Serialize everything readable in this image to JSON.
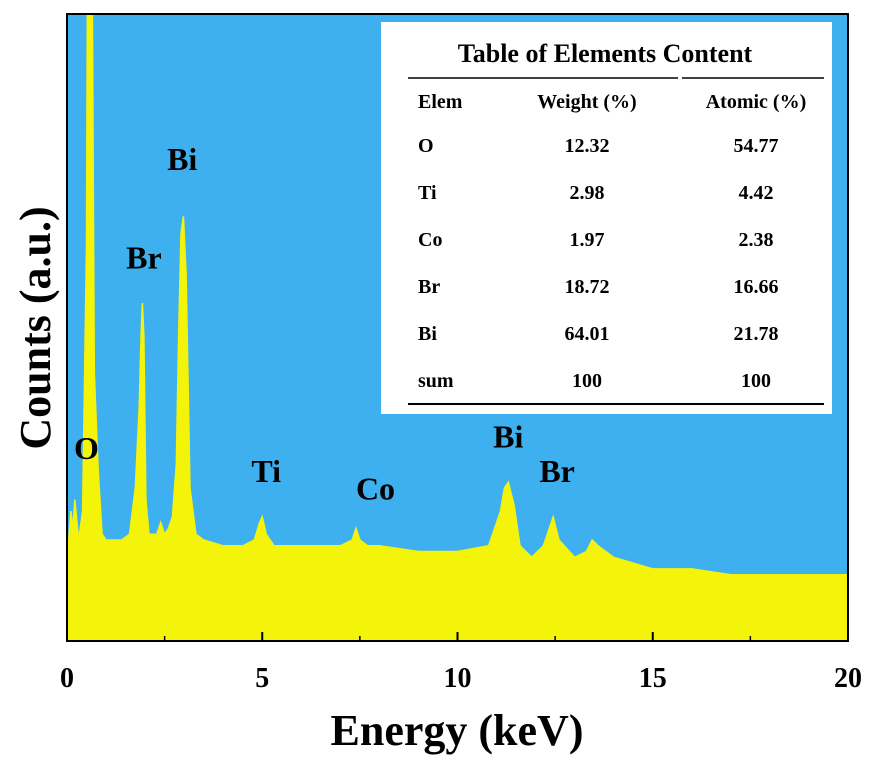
{
  "chart_data": {
    "type": "line",
    "xlabel": "Energy (keV)",
    "ylabel": "Counts (a.u.)",
    "xlim": [
      0,
      20
    ],
    "x_ticks": [
      "0",
      "5",
      "10",
      "15",
      "20"
    ],
    "y_ticks_shown": false,
    "background_color": "#3fb0ef",
    "series_color": "#f4f40a",
    "series": [
      {
        "x": [
          0.0,
          0.1,
          0.15,
          0.2,
          0.3,
          0.4,
          0.5,
          0.52,
          0.55,
          0.65,
          0.7,
          0.8,
          0.9,
          1.0,
          1.2,
          1.4,
          1.6,
          1.75,
          1.85,
          1.9,
          1.93,
          1.97,
          2.02,
          2.1,
          2.3,
          2.4,
          2.5,
          2.6,
          2.7,
          2.8,
          2.86,
          2.92,
          2.98,
          3.05,
          3.15,
          3.3,
          3.5,
          4.0,
          4.5,
          4.8,
          4.93,
          5.0,
          5.1,
          5.3,
          6.0,
          6.5,
          7.0,
          7.3,
          7.4,
          7.5,
          7.7,
          8.0,
          9.0,
          10.0,
          10.8,
          11.1,
          11.2,
          11.3,
          11.45,
          11.6,
          11.9,
          12.2,
          12.35,
          12.45,
          12.6,
          13.0,
          13.3,
          13.45,
          13.6,
          14.0,
          15.0,
          16.0,
          17.0,
          18.0,
          19.0,
          20.0
        ],
        "y": [
          5,
          14,
          11,
          16,
          9,
          14,
          60,
          100,
          100,
          100,
          38,
          21,
          10,
          9,
          9,
          9,
          10,
          18,
          32,
          45,
          50,
          44,
          16,
          10,
          10,
          12,
          10,
          11,
          13,
          22,
          45,
          62,
          65,
          55,
          18,
          10,
          9,
          8,
          8,
          9,
          12,
          13,
          10,
          8,
          8,
          8,
          8,
          9,
          11,
          9,
          8,
          8,
          7,
          7,
          8,
          14,
          18,
          19,
          15,
          8,
          6,
          8,
          11,
          13,
          9,
          6,
          7,
          9,
          8,
          6,
          4,
          4,
          3,
          3,
          3,
          3
        ]
      }
    ],
    "peak_labels": [
      {
        "text": "O",
        "x": 0.5,
        "y": 23
      },
      {
        "text": "Br",
        "x": 1.97,
        "y": 56
      },
      {
        "text": "Bi",
        "x": 2.95,
        "y": 73
      },
      {
        "text": "Ti",
        "x": 5.1,
        "y": 19
      },
      {
        "text": "Co",
        "x": 7.9,
        "y": 16
      },
      {
        "text": "Bi",
        "x": 11.3,
        "y": 25
      },
      {
        "text": "Br",
        "x": 12.55,
        "y": 19
      }
    ]
  },
  "inset_table": {
    "title": "Table of Elements Content",
    "headers": [
      "Elem",
      "Weight (%)",
      "Atomic (%)"
    ],
    "rows": [
      [
        "O",
        "12.32",
        "54.77"
      ],
      [
        "Ti",
        "2.98",
        "4.42"
      ],
      [
        "Co",
        "1.97",
        "2.38"
      ],
      [
        "Br",
        "18.72",
        "16.66"
      ],
      [
        "Bi",
        "64.01",
        "21.78"
      ],
      [
        "sum",
        "100",
        "100"
      ]
    ]
  }
}
